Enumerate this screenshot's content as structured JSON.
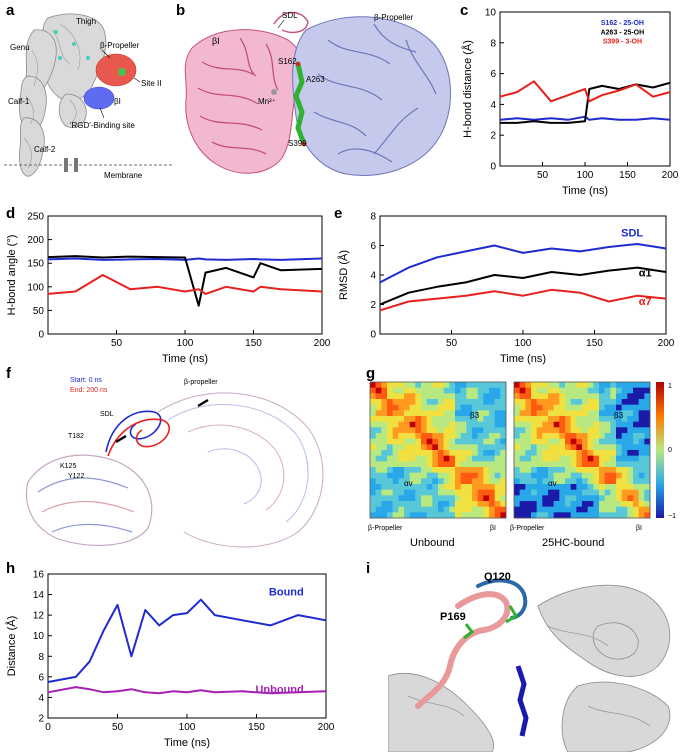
{
  "panel_labels": {
    "a": "a",
    "b": "b",
    "c": "c",
    "d": "d",
    "e": "e",
    "f": "f",
    "g": "g",
    "h": "h",
    "i": "i"
  },
  "panel_a": {
    "labels": {
      "thigh": "Thigh",
      "genu": "Genu",
      "calf1": "Calf-1",
      "calf2": "Calf-2",
      "propeller": "β-Propeller",
      "site2": "Site II",
      "bi": "βI",
      "rgd": "'RGD'-Binding site",
      "membrane": "Membrane"
    }
  },
  "panel_b": {
    "labels": {
      "sdl": "SDL",
      "bi": "βI",
      "propeller": "β-Propeller",
      "mn": "Mn²⁺",
      "s162": "S162",
      "a263": "A263",
      "s399": "S399"
    }
  },
  "panel_g": {
    "maps": [
      {
        "title": "Unbound",
        "left_tick": "β-Propeller",
        "right_tick": "βI",
        "diag1": "αv",
        "diag2": "β3"
      },
      {
        "title": "25HC-bound",
        "left_tick": "β-Propeller",
        "right_tick": "βI",
        "diag1": "αv",
        "diag2": "β3"
      }
    ],
    "colorbar_ticks": [
      "1",
      "0",
      "−1"
    ]
  },
  "panel_f": {
    "legend_start": "Start: 0 ns",
    "legend_end": "End: 200 ns",
    "labels": {
      "propeller": "β-propeller",
      "sdl": "SDL",
      "t182": "T182",
      "k125": "K125",
      "y122": "Y122"
    }
  },
  "panel_i": {
    "labels": {
      "q120": "Q120",
      "p169": "P169"
    }
  },
  "chart_data": [
    {
      "id": "c",
      "type": "line",
      "xlabel": "Time (ns)",
      "ylabel": "H-bond distance (Å)",
      "xlim": [
        0,
        200
      ],
      "ylim": [
        0,
        10
      ],
      "xticks": [
        50,
        100,
        150,
        200
      ],
      "yticks": [
        0,
        2,
        4,
        6,
        8,
        10
      ],
      "x": [
        0,
        20,
        40,
        60,
        80,
        100,
        105,
        120,
        140,
        160,
        180,
        200
      ],
      "series": [
        {
          "name": "S162 - 25-OH",
          "color": "#1f2bd1",
          "values": [
            3.0,
            3.1,
            3.0,
            3.1,
            3.0,
            3.2,
            3.0,
            3.1,
            3.0,
            3.0,
            3.1,
            3.0
          ]
        },
        {
          "name": "A263 - 25-OH",
          "color": "#000000",
          "values": [
            2.8,
            2.8,
            2.9,
            2.8,
            2.8,
            2.9,
            5.0,
            5.2,
            5.0,
            5.3,
            5.1,
            5.4
          ]
        },
        {
          "name": "S399 - 3-OH",
          "color": "#e8201c",
          "values": [
            4.5,
            4.8,
            5.5,
            4.2,
            4.6,
            5.0,
            4.2,
            4.6,
            4.9,
            5.3,
            4.5,
            4.8
          ]
        }
      ]
    },
    {
      "id": "d",
      "type": "line",
      "xlabel": "Time (ns)",
      "ylabel": "H-bond angle (°)",
      "xlim": [
        0,
        200
      ],
      "ylim": [
        0,
        250
      ],
      "xticks": [
        50,
        100,
        150,
        200
      ],
      "yticks": [
        0,
        50,
        100,
        150,
        200,
        250
      ],
      "x": [
        0,
        20,
        40,
        60,
        80,
        100,
        110,
        115,
        130,
        150,
        155,
        170,
        200
      ],
      "series": [
        {
          "name": "blue",
          "color": "#1f2bd1",
          "values": [
            158,
            160,
            157,
            158,
            159,
            157,
            160,
            158,
            157,
            159,
            158,
            157,
            160
          ]
        },
        {
          "name": "black",
          "color": "#000000",
          "values": [
            163,
            165,
            162,
            164,
            163,
            162,
            60,
            130,
            140,
            120,
            150,
            135,
            138
          ]
        },
        {
          "name": "red",
          "color": "#e8201c",
          "values": [
            85,
            90,
            125,
            95,
            100,
            90,
            95,
            85,
            100,
            90,
            100,
            95,
            90
          ]
        }
      ]
    },
    {
      "id": "e",
      "type": "line",
      "xlabel": "Time (ns)",
      "ylabel": "RMSD (Å)",
      "xlim": [
        0,
        200
      ],
      "ylim": [
        0,
        8
      ],
      "xticks": [
        50,
        100,
        150,
        200
      ],
      "yticks": [
        0,
        2,
        4,
        6,
        8
      ],
      "x": [
        0,
        20,
        40,
        60,
        80,
        100,
        120,
        140,
        160,
        180,
        200
      ],
      "series": [
        {
          "name": "SDL",
          "color": "#1f2bd1",
          "values": [
            3.5,
            4.5,
            5.2,
            5.6,
            6.0,
            5.5,
            5.8,
            5.6,
            5.9,
            6.1,
            5.8
          ]
        },
        {
          "name": "α1",
          "color": "#000000",
          "values": [
            2.0,
            2.8,
            3.2,
            3.5,
            4.0,
            3.8,
            4.2,
            4.0,
            4.3,
            4.5,
            4.2
          ]
        },
        {
          "name": "α7",
          "color": "#e8201c",
          "values": [
            1.6,
            2.2,
            2.4,
            2.6,
            2.9,
            2.6,
            3.0,
            2.8,
            2.2,
            2.6,
            2.4
          ]
        }
      ]
    },
    {
      "id": "h",
      "type": "line",
      "xlabel": "Time (ns)",
      "ylabel": "Distance (Å)",
      "xlim": [
        0,
        200
      ],
      "ylim": [
        2,
        16
      ],
      "xticks": [
        0,
        50,
        100,
        150,
        200
      ],
      "yticks": [
        2,
        4,
        6,
        8,
        10,
        12,
        14,
        16
      ],
      "x": [
        0,
        20,
        30,
        40,
        50,
        60,
        70,
        80,
        90,
        100,
        110,
        120,
        140,
        160,
        180,
        200
      ],
      "series": [
        {
          "name": "Bound",
          "color": "#1f2bd1",
          "values": [
            5.5,
            6.0,
            7.5,
            10.5,
            13.0,
            8.0,
            12.5,
            11.0,
            12.0,
            12.2,
            13.5,
            12.0,
            11.5,
            11.0,
            12.0,
            11.5
          ]
        },
        {
          "name": "Unbound",
          "color": "#a61fb5",
          "values": [
            4.5,
            5.0,
            4.8,
            4.5,
            4.6,
            4.8,
            4.5,
            4.4,
            4.6,
            4.5,
            4.7,
            4.5,
            4.6,
            4.4,
            4.5,
            4.6
          ]
        }
      ]
    }
  ]
}
